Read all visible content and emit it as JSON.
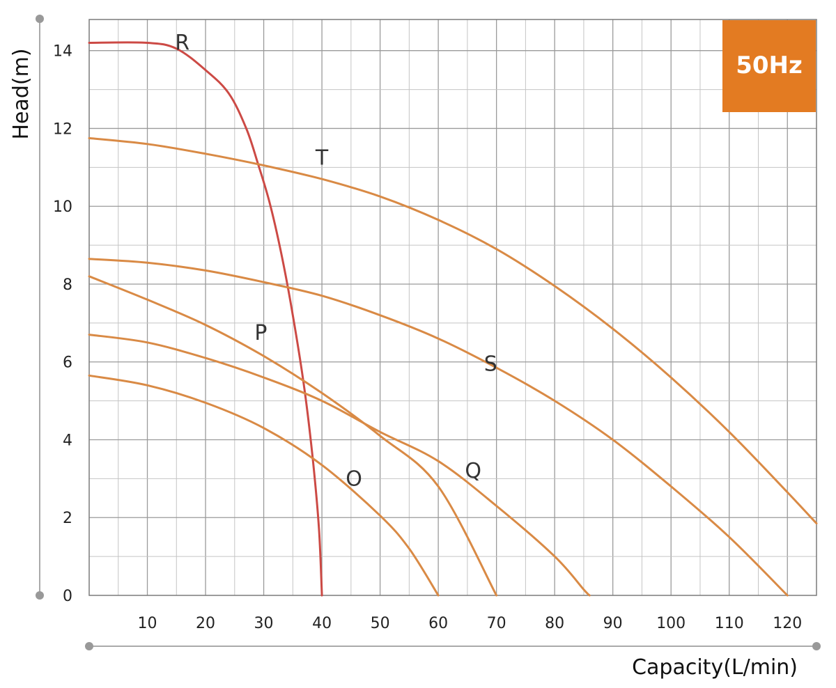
{
  "chart_data": {
    "type": "line",
    "badge": {
      "text": "50Hz",
      "color": "#E37B22"
    },
    "xlabel": "Capacity(L/min)",
    "ylabel": "Head(m)",
    "xlim": [
      0,
      125
    ],
    "ylim": [
      0,
      14.8
    ],
    "x_ticks": [
      10,
      20,
      30,
      40,
      50,
      60,
      70,
      80,
      90,
      100,
      110,
      120
    ],
    "x_tick_labels": [
      "10",
      "20",
      "30",
      "40",
      "50",
      "60",
      "70",
      "80",
      "90",
      "100",
      "110",
      "120"
    ],
    "y_ticks": [
      0,
      2,
      4,
      6,
      8,
      10,
      12,
      14
    ],
    "y_tick_labels": [
      "0",
      "2",
      "4",
      "6",
      "8",
      "10",
      "12",
      "14"
    ],
    "grid": true,
    "series": [
      {
        "name": "R",
        "color": "#CC4A45",
        "points": [
          [
            0,
            14.2
          ],
          [
            10,
            14.2
          ],
          [
            15,
            14.05
          ],
          [
            20,
            13.5
          ],
          [
            24,
            12.9
          ],
          [
            27,
            12.0
          ],
          [
            29,
            11.1
          ],
          [
            31,
            10.1
          ],
          [
            33,
            8.8
          ],
          [
            35,
            7.2
          ],
          [
            37,
            5.3
          ],
          [
            38.5,
            3.4
          ],
          [
            39.5,
            1.7
          ],
          [
            40,
            0
          ]
        ]
      },
      {
        "name": "T",
        "color": "#D98A45",
        "points": [
          [
            0,
            11.75
          ],
          [
            10,
            11.6
          ],
          [
            20,
            11.35
          ],
          [
            30,
            11.05
          ],
          [
            40,
            10.7
          ],
          [
            50,
            10.25
          ],
          [
            60,
            9.65
          ],
          [
            70,
            8.9
          ],
          [
            80,
            7.95
          ],
          [
            90,
            6.85
          ],
          [
            100,
            5.6
          ],
          [
            110,
            4.2
          ],
          [
            120,
            2.65
          ],
          [
            125,
            1.85
          ]
        ]
      },
      {
        "name": "S",
        "color": "#D98A45",
        "points": [
          [
            0,
            8.65
          ],
          [
            10,
            8.55
          ],
          [
            20,
            8.35
          ],
          [
            30,
            8.05
          ],
          [
            40,
            7.7
          ],
          [
            50,
            7.2
          ],
          [
            60,
            6.6
          ],
          [
            70,
            5.85
          ],
          [
            80,
            5.0
          ],
          [
            90,
            4.0
          ],
          [
            100,
            2.8
          ],
          [
            110,
            1.5
          ],
          [
            120,
            0
          ]
        ]
      },
      {
        "name": "P",
        "color": "#D98A45",
        "points": [
          [
            0,
            8.2
          ],
          [
            10,
            7.6
          ],
          [
            20,
            6.95
          ],
          [
            30,
            6.15
          ],
          [
            40,
            5.2
          ],
          [
            50,
            4.1
          ],
          [
            60,
            2.8
          ],
          [
            70,
            0
          ]
        ]
      },
      {
        "name": "Q",
        "color": "#D98A45",
        "points": [
          [
            0,
            6.7
          ],
          [
            10,
            6.5
          ],
          [
            20,
            6.1
          ],
          [
            30,
            5.6
          ],
          [
            40,
            5.0
          ],
          [
            50,
            4.2
          ],
          [
            60,
            3.45
          ],
          [
            70,
            2.3
          ],
          [
            80,
            1.0
          ],
          [
            85,
            0.15
          ],
          [
            86,
            0
          ]
        ]
      },
      {
        "name": "O",
        "color": "#D98A45",
        "points": [
          [
            0,
            5.65
          ],
          [
            10,
            5.4
          ],
          [
            20,
            4.95
          ],
          [
            30,
            4.3
          ],
          [
            40,
            3.35
          ],
          [
            50,
            2.05
          ],
          [
            55,
            1.2
          ],
          [
            60,
            0
          ]
        ]
      }
    ],
    "annotations": [
      {
        "text": "R",
        "x": 16,
        "y": 14.2
      },
      {
        "text": "T",
        "x": 40,
        "y": 11.25
      },
      {
        "text": "P",
        "x": 29.5,
        "y": 6.75
      },
      {
        "text": "S",
        "x": 69,
        "y": 5.95
      },
      {
        "text": "Q",
        "x": 66,
        "y": 3.2
      },
      {
        "text": "O",
        "x": 45.5,
        "y": 3.0
      }
    ]
  }
}
